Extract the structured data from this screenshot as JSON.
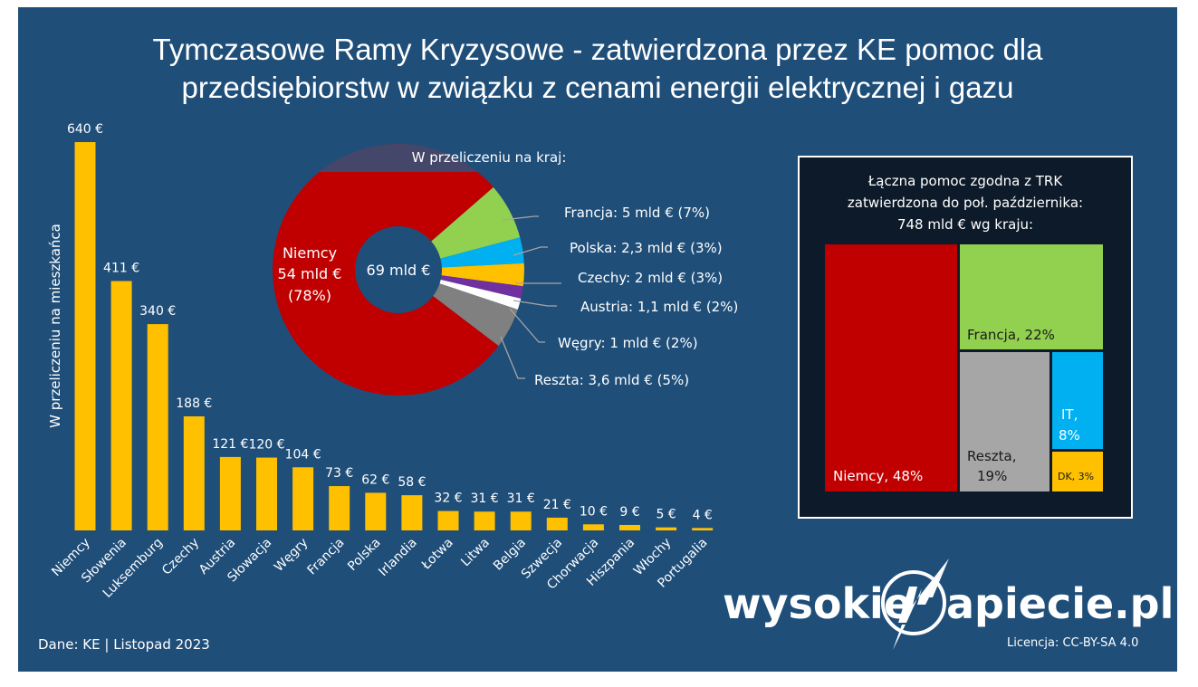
{
  "title": {
    "line1": "Tymczasowe Ramy Kryzysowe - zatwierdzona przez KE pomoc dla",
    "line2": "przedsiębiorstw w związku z cenami energii elektrycznej i gazu"
  },
  "background_color": "#1f4e79",
  "chart_data": [
    {
      "type": "bar",
      "ylabel": "W przeliczeniu na mieszkańca",
      "xlabel": "",
      "unit": "€",
      "color": "#ffc000",
      "categories": [
        "Niemcy",
        "Słowenia",
        "Luksemburg",
        "Czechy",
        "Austria",
        "Słowacja",
        "Węgry",
        "Francja",
        "Polska",
        "Irlandia",
        "Łotwa",
        "Litwa",
        "Belgia",
        "Szwecja",
        "Chorwacja",
        "Hiszpania",
        "Włochy",
        "Portugalia"
      ],
      "values": [
        640,
        411,
        340,
        188,
        121,
        120,
        104,
        73,
        62,
        58,
        32,
        31,
        31,
        21,
        10,
        9,
        5,
        4
      ],
      "data_labels": [
        "640 €",
        "411 €",
        "340 €",
        "188 €",
        "121 €",
        "120 €",
        "104 €",
        "73 €",
        "62 €",
        "58 €",
        "32 €",
        "31 €",
        "31 €",
        "21 €",
        "10 €",
        "9 €",
        "5 €",
        "4 €"
      ],
      "ylim": [
        0,
        640
      ],
      "grid": false
    },
    {
      "type": "pie",
      "title": "W przeliczeniu na kraj:",
      "center_label": "69 mld €",
      "total": 69,
      "slices": [
        {
          "name": "Niemcy",
          "value": 54,
          "label_lines": [
            "Niemcy",
            "54 mld €",
            "(78%)"
          ],
          "color": "#c00000"
        },
        {
          "name": "Francja",
          "value": 5,
          "label": "Francja: 5 mld € (7%)",
          "color": "#92d050"
        },
        {
          "name": "Polska",
          "value": 2.3,
          "label": "Polska: 2,3 mld € (3%)",
          "color": "#00b0f0"
        },
        {
          "name": "Czechy",
          "value": 2,
          "label": "Czechy: 2 mld € (3%)",
          "color": "#ffc000"
        },
        {
          "name": "Austria",
          "value": 1.1,
          "label": "Austria: 1,1 mld € (2%)",
          "color": "#7030a0"
        },
        {
          "name": "Węgry",
          "value": 1,
          "label": "Węgry: 1 mld € (2%)",
          "color": "#ffffff"
        },
        {
          "name": "Reszta",
          "value": 3.6,
          "label": "Reszta: 3,6 mld € (5%)",
          "color": "#808080"
        }
      ]
    },
    {
      "type": "treemap",
      "title_lines": [
        "Łączna pomoc zgodna z TRK",
        "zatwierdzona do poł. października:",
        "748 mld € wg kraju:"
      ],
      "cells": [
        {
          "name": "Niemcy",
          "percent": 48,
          "label": "Niemcy, 48%",
          "color": "#c00000"
        },
        {
          "name": "Francja",
          "percent": 22,
          "label": "Francja, 22%",
          "color": "#92d050"
        },
        {
          "name": "Reszta",
          "percent": 19,
          "label_lines": [
            "Reszta,",
            "19%"
          ],
          "color": "#a6a6a6"
        },
        {
          "name": "IT",
          "percent": 8,
          "label_lines": [
            "IT,",
            "8%"
          ],
          "color": "#00b0f0"
        },
        {
          "name": "DK",
          "percent": 3,
          "label": "DK, 3%",
          "color": "#ffc000"
        }
      ]
    }
  ],
  "footer": {
    "source": "Dane: KE  |  Listopad 2023",
    "license": "Licencja: CC-BY-SA 4.0",
    "logo_left": "wysokie",
    "logo_right": "apiecie.pl"
  }
}
